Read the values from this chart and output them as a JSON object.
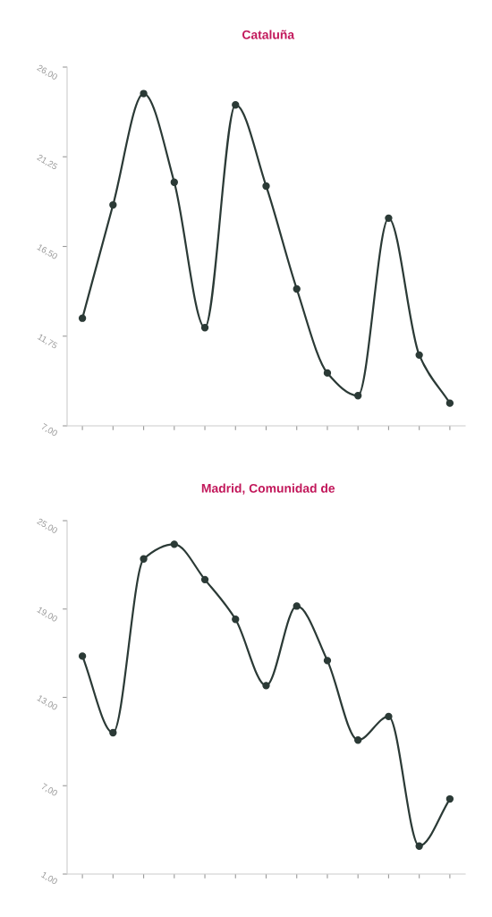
{
  "chart_data": [
    {
      "type": "line",
      "title": "Cataluña",
      "categories": [
        null,
        null,
        null,
        null,
        null,
        null,
        null,
        null,
        null,
        null,
        null,
        null,
        null
      ],
      "series": [
        {
          "color": "#2b3a36",
          "values": [
            12.7,
            18.7,
            24.6,
            19.9,
            12.2,
            24.0,
            19.7,
            14.25,
            9.8,
            8.6,
            18.0,
            10.75,
            8.2
          ]
        }
      ],
      "ylim": [
        7,
        26
      ],
      "yticks": [
        {
          "value": 7,
          "label": "7,00"
        },
        {
          "value": 11.75,
          "label": "11,75"
        },
        {
          "value": 16.5,
          "label": "16,50"
        },
        {
          "value": 21.25,
          "label": "21,25"
        },
        {
          "value": 26,
          "label": "26,00"
        }
      ],
      "tick_labels": "y",
      "marker": "circle",
      "line_style": "solid",
      "grid": false,
      "legend": false
    },
    {
      "type": "line",
      "title": "Madrid, Comunidad de",
      "categories": [
        null,
        null,
        null,
        null,
        null,
        null,
        null,
        null,
        null,
        null,
        null,
        null,
        null
      ],
      "series": [
        {
          "color": "#2b3a36",
          "values": [
            15.8,
            10.6,
            22.4,
            23.4,
            21.0,
            18.3,
            13.8,
            19.2,
            15.5,
            10.1,
            11.7,
            2.9,
            6.1
          ]
        }
      ],
      "ylim": [
        1,
        25
      ],
      "yticks": [
        {
          "value": 1,
          "label": "1,00"
        },
        {
          "value": 7,
          "label": "7,00"
        },
        {
          "value": 13,
          "label": "13,00"
        },
        {
          "value": 19,
          "label": "19,00"
        },
        {
          "value": 25,
          "label": "25,00"
        }
      ],
      "marker": "circle",
      "line_style": "solid",
      "grid": false,
      "legend": false
    }
  ]
}
